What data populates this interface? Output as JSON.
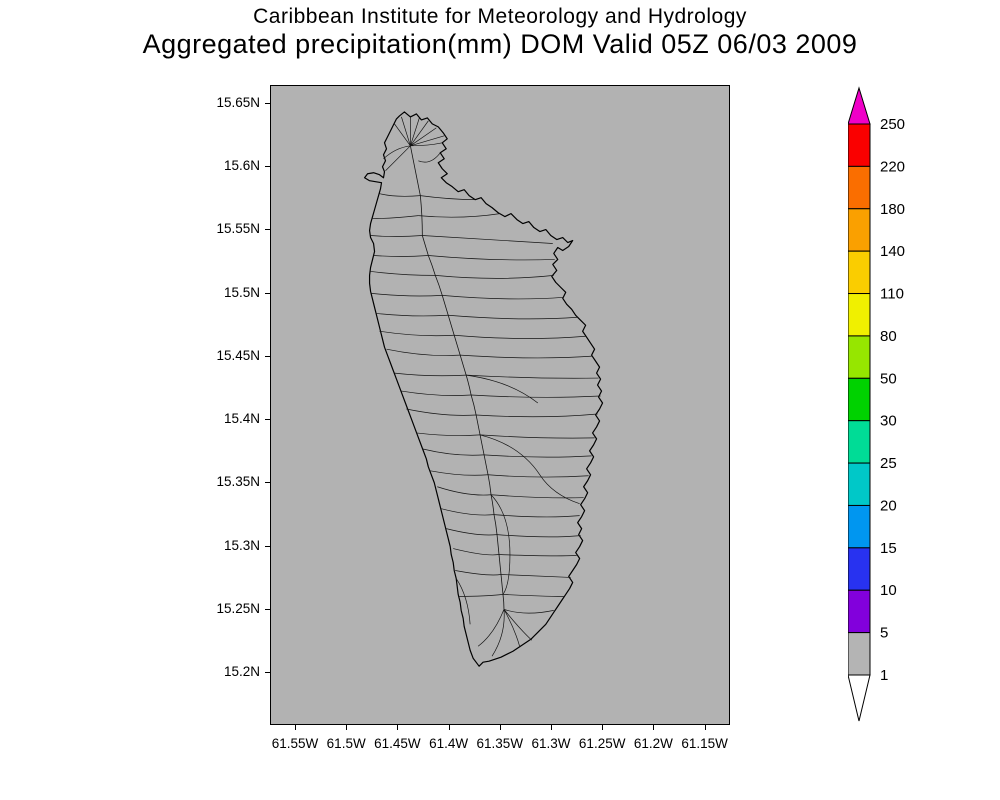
{
  "header": {
    "title_line1": "Caribbean Institute for Meteorology and Hydrology",
    "title_line2": "Aggregated precipitation(mm) DOM Valid 05Z 06/03 2009"
  },
  "map": {
    "background_color": "#b2b2b2",
    "y_axis_labels": [
      "15.65N",
      "15.6N",
      "15.55N",
      "15.5N",
      "15.45N",
      "15.4N",
      "15.35N",
      "15.3N",
      "15.25N",
      "15.2N"
    ],
    "x_axis_labels": [
      "61.55W",
      "61.5W",
      "61.45W",
      "61.4W",
      "61.35W",
      "61.3W",
      "61.25W",
      "61.2W",
      "61.15W"
    ]
  },
  "colorbar": {
    "labels": [
      "250",
      "220",
      "180",
      "140",
      "110",
      "80",
      "50",
      "30",
      "25",
      "20",
      "15",
      "10",
      "5",
      "1"
    ],
    "segment_colors": [
      "#fa0000",
      "#fa6e00",
      "#faa000",
      "#facd00",
      "#f0f000",
      "#96e600",
      "#00d200",
      "#00dc96",
      "#00c8c8",
      "#0096f0",
      "#2832f0",
      "#8200dc",
      "#b4b4b4"
    ],
    "top_arrow_color": "#f000c8",
    "bottom_arrow_color": "#ffffff",
    "outline_color": "#000000"
  },
  "chart_data": {
    "type": "heatmap",
    "title": "Aggregated precipitation(mm) DOM Valid 05Z 06/03 2009",
    "subtitle": "Caribbean Institute for Meteorology and Hydrology",
    "units": "mm",
    "lat_ticks": [
      "15.65N",
      "15.6N",
      "15.55N",
      "15.5N",
      "15.45N",
      "15.4N",
      "15.35N",
      "15.3N",
      "15.25N",
      "15.2N"
    ],
    "lon_ticks": [
      "61.55W",
      "61.5W",
      "61.45W",
      "61.4W",
      "61.35W",
      "61.3W",
      "61.25W",
      "61.2W",
      "61.15W"
    ],
    "colorbar_levels": [
      250,
      220,
      180,
      140,
      110,
      80,
      50,
      30,
      25,
      20,
      15,
      10,
      5,
      1
    ],
    "colorbar_colors_top_to_bottom": [
      "#f000c8",
      "#fa0000",
      "#fa6e00",
      "#faa000",
      "#facd00",
      "#f0f000",
      "#96e600",
      "#00d200",
      "#00dc96",
      "#00c8c8",
      "#0096f0",
      "#2832f0",
      "#8200dc",
      "#b4b4b4",
      "#ffffff"
    ],
    "legend_position": "right",
    "grid": false
  }
}
